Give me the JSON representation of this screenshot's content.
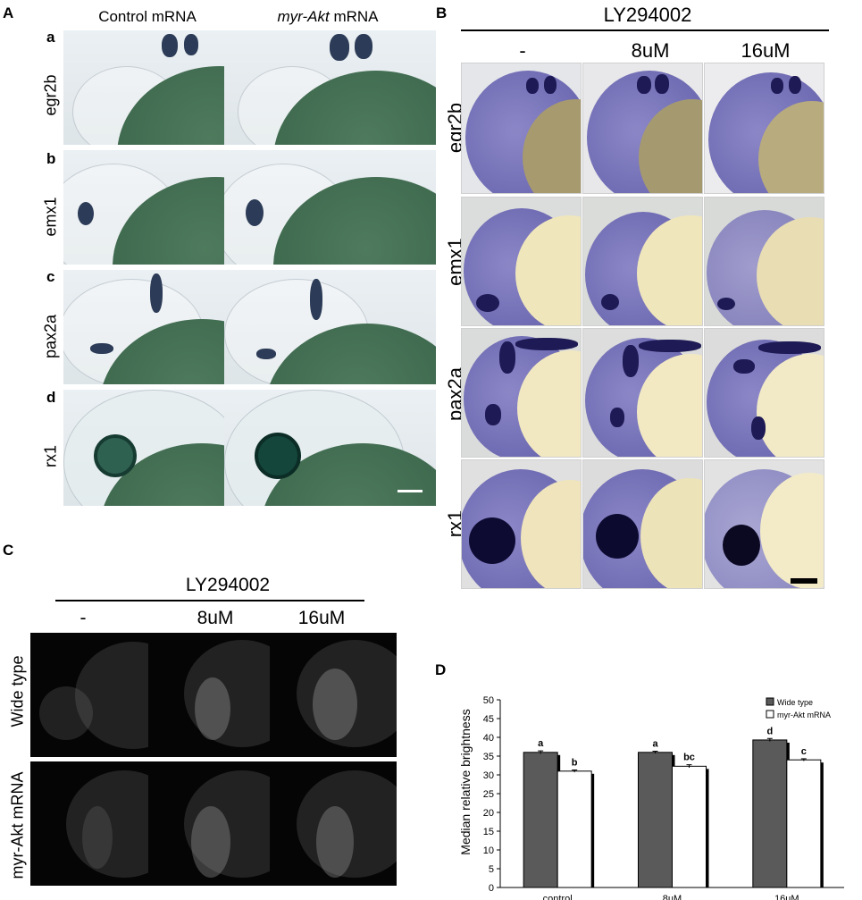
{
  "panelA": {
    "label": "A",
    "col_headers": [
      "Control mRNA",
      "myr-Akt",
      "mRNA"
    ],
    "rows": [
      {
        "letter": "a",
        "gene": "egr2b"
      },
      {
        "letter": "b",
        "gene": "emx1"
      },
      {
        "letter": "c",
        "gene": "pax2a"
      },
      {
        "letter": "d",
        "gene": "rx1"
      }
    ]
  },
  "panelB": {
    "label": "B",
    "treatment": "LY294002",
    "doses": [
      "-",
      "8uM",
      "16uM"
    ],
    "genes": [
      "egr2b",
      "emx1",
      "pax2a",
      "rx1"
    ]
  },
  "panelC": {
    "label": "C",
    "treatment": "LY294002",
    "doses": [
      "-",
      "8uM",
      "16uM"
    ],
    "rows": [
      "Wide type",
      "myr-Akt mRNA"
    ]
  },
  "panelD": {
    "label": "D"
  },
  "chart_data": {
    "type": "bar",
    "categories": [
      "control",
      "8uM",
      "16uM"
    ],
    "ylabel": "Median relative brightness",
    "ylim": [
      0,
      50
    ],
    "yticks": [
      0,
      5,
      10,
      15,
      20,
      25,
      30,
      35,
      40,
      45,
      50
    ],
    "legend_position": "top-right",
    "series": [
      {
        "name": "Wide type",
        "color": "#5a5a5a",
        "values": [
          36.0,
          36.0,
          39.3
        ],
        "errors": [
          0.4,
          0.3,
          0.4
        ],
        "letters": [
          "a",
          "a",
          "d"
        ]
      },
      {
        "name": "myr-Akt mRNA",
        "color": "#ffffff",
        "values": [
          31.0,
          32.3,
          34.0
        ],
        "errors": [
          0.3,
          0.4,
          0.3
        ],
        "letters": [
          "b",
          "bc",
          "c"
        ]
      }
    ]
  }
}
